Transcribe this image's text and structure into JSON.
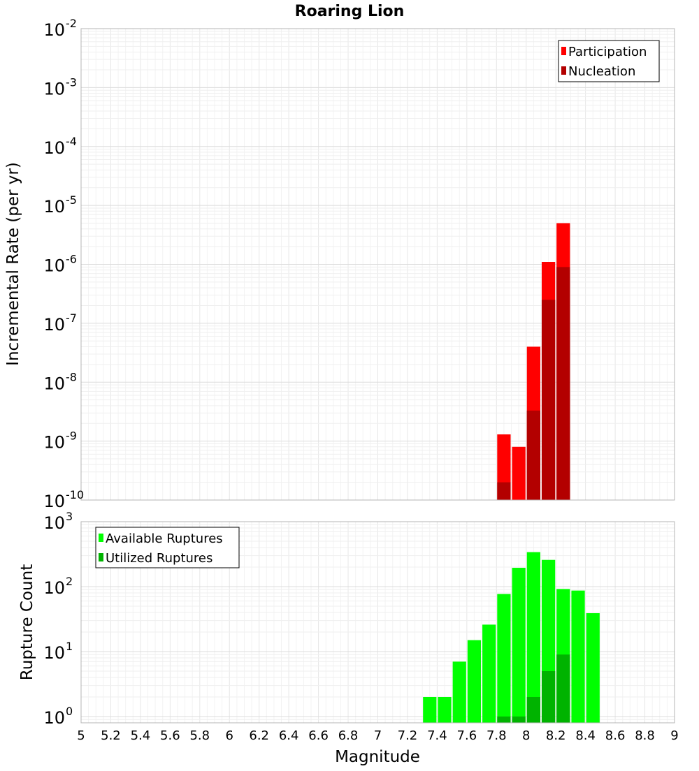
{
  "chart_data": [
    {
      "type": "bar",
      "title": "Roaring Lion",
      "xlabel": "",
      "ylabel": "Incremental Rate (per yr)",
      "yscale": "log",
      "xlim": [
        5,
        9
      ],
      "ylim": [
        1e-10,
        0.01
      ],
      "ytick_exponents": [
        -10,
        -9,
        -8,
        -7,
        -6,
        -5,
        -4,
        -3,
        -2
      ],
      "grid": true,
      "legend_position": "top-right",
      "bar_width": 0.1,
      "series": [
        {
          "name": "Participation",
          "color": "#ff0000",
          "points": [
            {
              "x": 7.85,
              "y": 1.3e-09
            },
            {
              "x": 7.95,
              "y": 8e-10
            },
            {
              "x": 8.05,
              "y": 4e-08
            },
            {
              "x": 8.15,
              "y": 1.1e-06
            },
            {
              "x": 8.25,
              "y": 5e-06
            }
          ]
        },
        {
          "name": "Nucleation",
          "color": "#b30000",
          "points": [
            {
              "x": 7.85,
              "y": 2e-10
            },
            {
              "x": 8.05,
              "y": 3.3e-09
            },
            {
              "x": 8.15,
              "y": 2.5e-07
            },
            {
              "x": 8.25,
              "y": 9e-07
            }
          ]
        }
      ]
    },
    {
      "type": "bar",
      "title": "",
      "xlabel": "Magnitude",
      "ylabel": "Rupture Count",
      "yscale": "log",
      "xlim": [
        5,
        9
      ],
      "ylim": [
        0.8,
        1000
      ],
      "ytick_exponents": [
        0,
        1,
        2,
        3
      ],
      "xticks": [
        "5",
        "5.2",
        "5.4",
        "5.6",
        "5.8",
        "6",
        "6.2",
        "6.4",
        "6.6",
        "6.8",
        "7",
        "7.2",
        "7.4",
        "7.6",
        "7.8",
        "8",
        "8.2",
        "8.4",
        "8.6",
        "8.8",
        "9"
      ],
      "grid": true,
      "legend_position": "top-left",
      "bar_width": 0.1,
      "series": [
        {
          "name": "Available Ruptures",
          "color": "#00ff00",
          "points": [
            {
              "x": 7.35,
              "y": 2
            },
            {
              "x": 7.45,
              "y": 2
            },
            {
              "x": 7.55,
              "y": 7
            },
            {
              "x": 7.65,
              "y": 15
            },
            {
              "x": 7.75,
              "y": 26
            },
            {
              "x": 7.85,
              "y": 77
            },
            {
              "x": 7.95,
              "y": 195
            },
            {
              "x": 8.05,
              "y": 340
            },
            {
              "x": 8.15,
              "y": 258
            },
            {
              "x": 8.25,
              "y": 92
            },
            {
              "x": 8.35,
              "y": 87
            },
            {
              "x": 8.45,
              "y": 39
            }
          ]
        },
        {
          "name": "Utilized Ruptures",
          "color": "#00b300",
          "points": [
            {
              "x": 7.85,
              "y": 1
            },
            {
              "x": 7.95,
              "y": 1
            },
            {
              "x": 8.05,
              "y": 2
            },
            {
              "x": 8.15,
              "y": 5
            },
            {
              "x": 8.25,
              "y": 9
            }
          ]
        }
      ]
    }
  ]
}
